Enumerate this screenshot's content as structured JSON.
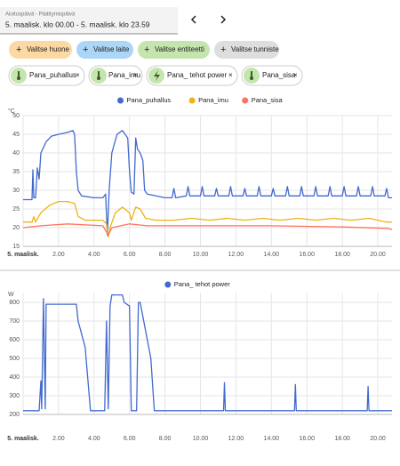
{
  "ui": {
    "date_label": "Aloituspäivä - Päättymispäivä",
    "date_range": "5. maalisk. klo 00.00 - 5. maalisk. klo 23.59",
    "buttons": [
      "Valitse huone",
      "Valitse laite",
      "Valitse entiteetti",
      "Valitse tunniste"
    ],
    "chips": [
      "Pana_puhallus",
      "Pana_imu",
      "Pana_ tehot power",
      "Pana_sisa"
    ]
  },
  "chart_data": [
    {
      "type": "line",
      "ylabel": "°C",
      "ylim": [
        15,
        50
      ],
      "yticks": [
        15,
        20,
        25,
        30,
        35,
        40,
        45,
        50
      ],
      "xlim": [
        0,
        20.8
      ],
      "xticks": [
        {
          "value": 0,
          "label": "5. maalisk."
        },
        {
          "value": 2,
          "label": "2.00"
        },
        {
          "value": 4,
          "label": "4.00"
        },
        {
          "value": 6,
          "label": "6.00"
        },
        {
          "value": 8,
          "label": "8.00"
        },
        {
          "value": 10,
          "label": "10.00"
        },
        {
          "value": 12,
          "label": "12.00"
        },
        {
          "value": 14,
          "label": "14.00"
        },
        {
          "value": 16,
          "label": "16.00"
        },
        {
          "value": 18,
          "label": "18.00"
        },
        {
          "value": 20,
          "label": "20.00"
        }
      ],
      "grid": true,
      "legend": "top",
      "series": [
        {
          "name": "Pana_puhallus",
          "color": "#4269d0",
          "x": [
            0,
            0.5,
            0.55,
            0.6,
            0.7,
            0.8,
            0.9,
            1.0,
            1.3,
            1.6,
            2.0,
            2.5,
            2.8,
            2.9,
            3.0,
            3.1,
            3.3,
            4.0,
            4.5,
            4.65,
            4.75,
            4.85,
            5.0,
            5.3,
            5.6,
            5.9,
            6.0,
            6.1,
            6.25,
            6.35,
            6.45,
            6.6,
            6.75,
            6.85,
            7.0,
            7.5,
            8.0,
            8.4,
            8.5,
            8.6,
            9.2,
            9.3,
            9.4,
            10.0,
            10.1,
            10.2,
            10.8,
            10.9,
            11.0,
            11.6,
            11.7,
            11.8,
            12.4,
            12.5,
            12.6,
            13.2,
            13.3,
            13.4,
            14.0,
            14.1,
            14.2,
            14.8,
            14.9,
            15.0,
            15.6,
            15.7,
            15.8,
            16.4,
            16.5,
            16.6,
            17.2,
            17.3,
            17.4,
            18.0,
            18.1,
            18.2,
            18.8,
            18.9,
            19.0,
            19.6,
            19.7,
            19.8,
            20.4,
            20.5,
            20.6,
            20.8
          ],
          "values": [
            27.5,
            27.5,
            35.5,
            28,
            28,
            36,
            33,
            40,
            43,
            44.5,
            45,
            45.5,
            46,
            45,
            35,
            30,
            28.5,
            28,
            28,
            29,
            18,
            30,
            40,
            45,
            46,
            44,
            35,
            29.5,
            29,
            44,
            41,
            40,
            38,
            30,
            29,
            28.5,
            28,
            28,
            30.5,
            28,
            28.5,
            31,
            28.5,
            28.5,
            31,
            28.5,
            28.5,
            30.5,
            28.5,
            28.5,
            31,
            28.5,
            28.5,
            30.5,
            28.5,
            28.5,
            31,
            28.5,
            28.5,
            30.5,
            28.5,
            28.5,
            31,
            28.5,
            28.5,
            31,
            28.5,
            28.5,
            31,
            28.5,
            28.5,
            31,
            28.5,
            28.5,
            31,
            28.5,
            28.5,
            31,
            28.5,
            28.5,
            31,
            28.5,
            28.5,
            30.5,
            28,
            28
          ]
        },
        {
          "name": "Pana_imu",
          "color": "#efb118",
          "x": [
            0,
            0.5,
            0.6,
            0.7,
            1.0,
            1.5,
            2.0,
            2.5,
            2.9,
            3.1,
            3.5,
            4.5,
            4.7,
            4.8,
            4.9,
            5.2,
            5.6,
            6.0,
            6.1,
            6.35,
            6.6,
            6.9,
            7.5,
            8.5,
            9.5,
            10.5,
            11.5,
            12.5,
            13.5,
            14.5,
            15.5,
            16.5,
            17.5,
            18.5,
            19.5,
            20.5,
            20.8
          ],
          "values": [
            21.5,
            21.5,
            23,
            21.5,
            24,
            26,
            27,
            27,
            26.5,
            23,
            22,
            22,
            21,
            17.5,
            20,
            24,
            25.5,
            24,
            22,
            25.5,
            25,
            22.5,
            22,
            22,
            22.5,
            22,
            22.5,
            22,
            22.5,
            22,
            22.5,
            22,
            22.5,
            22,
            22.5,
            21.5,
            21.5
          ]
        },
        {
          "name": "Pana_sisa",
          "color": "#ff725c",
          "x": [
            0,
            1.0,
            2.5,
            4.5,
            4.8,
            5.0,
            6.0,
            7.0,
            10,
            14,
            18,
            20.5,
            20.8
          ],
          "values": [
            20,
            20.5,
            21,
            20.5,
            18,
            20,
            21,
            20.5,
            20.5,
            20.5,
            20.2,
            19.8,
            19.5
          ]
        }
      ]
    },
    {
      "type": "line",
      "ylabel": "W",
      "ylim": [
        200,
        850
      ],
      "yticks": [
        200,
        300,
        400,
        500,
        600,
        700,
        800
      ],
      "xlim": [
        0,
        20.8
      ],
      "xticks": [
        {
          "value": 0,
          "label": "5. maalisk."
        },
        {
          "value": 2,
          "label": "2.00"
        },
        {
          "value": 4,
          "label": "4.00"
        },
        {
          "value": 6,
          "label": "6.00"
        },
        {
          "value": 8,
          "label": "8.00"
        },
        {
          "value": 10,
          "label": "10.00"
        },
        {
          "value": 12,
          "label": "12.00"
        },
        {
          "value": 14,
          "label": "14.00"
        },
        {
          "value": 16,
          "label": "16.00"
        },
        {
          "value": 18,
          "label": "18.00"
        },
        {
          "value": 20,
          "label": "20.00"
        }
      ],
      "grid": true,
      "legend": "top",
      "series": [
        {
          "name": "Pana_ tehot power",
          "color": "#4269d0",
          "x": [
            0,
            0.9,
            1.0,
            1.05,
            1.15,
            1.25,
            1.3,
            3.0,
            3.1,
            3.5,
            3.8,
            4.6,
            4.7,
            4.8,
            4.9,
            5.0,
            5.6,
            5.7,
            6.0,
            6.1,
            6.4,
            6.5,
            6.6,
            6.8,
            7.2,
            7.4,
            11.3,
            11.35,
            11.4,
            15.3,
            15.35,
            15.4,
            19.4,
            19.45,
            19.5,
            20.8
          ],
          "values": [
            220,
            220,
            380,
            230,
            820,
            230,
            790,
            790,
            700,
            560,
            220,
            220,
            700,
            230,
            780,
            840,
            840,
            800,
            780,
            220,
            220,
            800,
            800,
            700,
            500,
            220,
            220,
            370,
            220,
            220,
            360,
            220,
            220,
            350,
            220,
            220
          ]
        }
      ]
    }
  ]
}
